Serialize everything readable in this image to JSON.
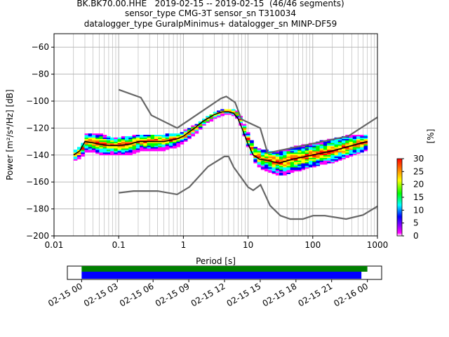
{
  "header": {
    "title_lines": [
      "BK.BK70.00.HHE   2019-02-15 -- 2019-02-15  (46/46 segments)",
      "sensor_type CMG-3T sensor_sn T310034",
      "datalogger_type GuralpMinimus+ datalogger_sn MINP-DF59"
    ]
  },
  "chart_data": [
    {
      "type": "heatmap",
      "title": "BK.BK70.00.HHE   2019-02-15 -- 2019-02-15  (46/46 segments)",
      "xlabel": "Period [s]",
      "ylabel": "Power [m²/s⁴/Hz] [dB]",
      "x_scale": "log",
      "xlim": [
        0.01,
        1000
      ],
      "ylim": [
        -200,
        -50
      ],
      "x_tick_labels": [
        "0.01",
        "0.1",
        "1",
        "10",
        "100",
        "1000"
      ],
      "y_ticks": [
        -200,
        -180,
        -160,
        -140,
        -120,
        -100,
        -80,
        -60
      ],
      "grid": true,
      "colorbar": {
        "label": "[%]",
        "range": [
          0,
          30
        ],
        "ticks": [
          0,
          5,
          10,
          15,
          20,
          25,
          30
        ],
        "colors": [
          "#ffffff",
          "#ff00ff",
          "#0000ff",
          "#00ffff",
          "#00ff00",
          "#ffff00",
          "#ff7f00",
          "#ff0000"
        ]
      },
      "series": [
        {
          "name": "median",
          "color": "#000000",
          "x": [
            0.02,
            0.025,
            0.03,
            0.04,
            0.05,
            0.07,
            0.1,
            0.15,
            0.2,
            0.3,
            0.5,
            0.8,
            1,
            1.5,
            2,
            3,
            4,
            5,
            6,
            7,
            8,
            10,
            12,
            15,
            20,
            30,
            50,
            100,
            200,
            400,
            700
          ],
          "y": [
            -140,
            -137,
            -130,
            -131,
            -132,
            -133,
            -133,
            -132,
            -130,
            -130,
            -130,
            -128,
            -126,
            -120,
            -115,
            -110,
            -108,
            -108,
            -109,
            -113,
            -120,
            -132,
            -140,
            -143,
            -144,
            -146,
            -143,
            -140,
            -137,
            -133,
            -130
          ]
        },
        {
          "name": "NHNM",
          "color": "#666666",
          "x": [
            0.1,
            0.22,
            0.32,
            0.8,
            3.8,
            4.6,
            6.3,
            7.9,
            15.4,
            20,
            354.8,
            1000
          ],
          "y": [
            -91.5,
            -97.4,
            -110.5,
            -120,
            -98,
            -96.5,
            -101,
            -113.5,
            -120,
            -138.5,
            -126,
            -112
          ]
        },
        {
          "name": "NLNM",
          "color": "#666666",
          "x": [
            0.1,
            0.17,
            0.4,
            0.8,
            1.24,
            2.4,
            4.3,
            5,
            6,
            10,
            12,
            15.6,
            21.9,
            31.6,
            45,
            70,
            101,
            154,
            328,
            600,
            1000
          ],
          "y": [
            -168,
            -166.7,
            -166.7,
            -169.2,
            -163.7,
            -148.6,
            -141.1,
            -141.1,
            -149,
            -163.8,
            -166.2,
            -162.1,
            -177.5,
            -185,
            -187.5,
            -187.5,
            -185,
            -185,
            -187.5,
            -184.5,
            -178
          ]
        }
      ],
      "spread": {
        "x": [
          0.02,
          0.025,
          0.03,
          0.04,
          0.05,
          0.07,
          0.1,
          0.15,
          0.2,
          0.3,
          0.5,
          0.8,
          1,
          1.5,
          2,
          3,
          4,
          5,
          6,
          7,
          8,
          10,
          12,
          15,
          20,
          30,
          50,
          100,
          200,
          400,
          700
        ],
        "low": [
          -144,
          -141,
          -137,
          -138,
          -140,
          -140,
          -140,
          -139,
          -137,
          -137,
          -136,
          -133,
          -130,
          -123,
          -117,
          -112,
          -110,
          -110,
          -111,
          -116,
          -124,
          -137,
          -145,
          -150,
          -152,
          -155,
          -152,
          -148,
          -145,
          -140,
          -135
        ],
        "high": [
          -136,
          -133,
          -124,
          -124,
          -125,
          -127,
          -127,
          -126,
          -125,
          -125,
          -125,
          -124,
          -122,
          -117,
          -113,
          -108,
          -106,
          -106,
          -107,
          -110,
          -116,
          -127,
          -134,
          -136,
          -137,
          -137,
          -134,
          -131,
          -128,
          -125,
          -125
        ]
      }
    },
    {
      "type": "timeline",
      "x_tick_labels": [
        "02-15 00",
        "02-15 03",
        "02-15 06",
        "02-15 09",
        "02-15 12",
        "02-15 15",
        "02-15 18",
        "02-15 21",
        "02-16 00"
      ],
      "xlim_hours": [
        -1.2,
        25.2
      ],
      "bars": [
        {
          "name": "data",
          "color": "#008000",
          "start_hour": 0,
          "end_hour": 24.0
        },
        {
          "name": "processed",
          "color": "#0000ff",
          "start_hour": 0,
          "end_hour": 23.5
        }
      ]
    }
  ]
}
